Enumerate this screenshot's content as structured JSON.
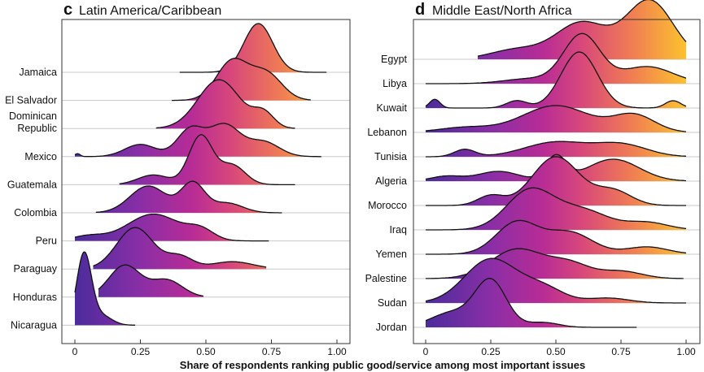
{
  "chart_data": [
    {
      "type": "ridgeline",
      "panel_letter": "c",
      "title": "Latin America/Caribbean",
      "xlim": [
        0,
        1
      ],
      "xticks": [
        0,
        0.25,
        0.5,
        0.75,
        1
      ],
      "xtick_labels": [
        "0",
        "0.25",
        "0.50",
        "0.75",
        "1.00"
      ],
      "grid": true,
      "colormap": "plasma (purple to orange along x)",
      "series": [
        {
          "name": "Jamaica",
          "range": [
            0.4,
            0.96
          ],
          "peaks": [
            [
              0.7,
              0.055,
              1.0
            ]
          ]
        },
        {
          "name": "El Salvador",
          "range": [
            0.37,
            0.9
          ],
          "peaks": [
            [
              0.6,
              0.06,
              0.8
            ],
            [
              0.73,
              0.06,
              0.55
            ]
          ]
        },
        {
          "name": "Dominican\nRepublic",
          "range": [
            0.31,
            0.84
          ],
          "peaks": [
            [
              0.55,
              0.08,
              1.0
            ],
            [
              0.72,
              0.04,
              0.3
            ]
          ]
        },
        {
          "name": "Mexico",
          "range": [
            0.0,
            0.94
          ],
          "peaks": [
            [
              0.44,
              0.05,
              0.55
            ],
            [
              0.57,
              0.06,
              0.65
            ],
            [
              0.25,
              0.06,
              0.25
            ],
            [
              0.72,
              0.06,
              0.3
            ],
            [
              0.01,
              0.01,
              0.06
            ]
          ]
        },
        {
          "name": "Guatemala",
          "range": [
            0.17,
            0.84
          ],
          "peaks": [
            [
              0.48,
              0.045,
              1.0
            ],
            [
              0.6,
              0.05,
              0.4
            ],
            [
              0.3,
              0.06,
              0.2
            ]
          ]
        },
        {
          "name": "Colombia",
          "range": [
            0.08,
            0.79
          ],
          "peaks": [
            [
              0.28,
              0.07,
              0.55
            ],
            [
              0.45,
              0.045,
              0.6
            ],
            [
              0.58,
              0.06,
              0.2
            ]
          ]
        },
        {
          "name": "Peru",
          "range": [
            0.0,
            0.74
          ],
          "peaks": [
            [
              0.3,
              0.1,
              0.55
            ],
            [
              0.48,
              0.05,
              0.2
            ],
            [
              0.05,
              0.06,
              0.1
            ]
          ]
        },
        {
          "name": "Paraguay",
          "range": [
            0.07,
            0.73
          ],
          "peaks": [
            [
              0.23,
              0.07,
              0.85
            ],
            [
              0.4,
              0.05,
              0.25
            ],
            [
              0.6,
              0.08,
              0.15
            ]
          ]
        },
        {
          "name": "Honduras",
          "range": [
            0.09,
            0.49
          ],
          "peaks": [
            [
              0.19,
              0.06,
              0.65
            ],
            [
              0.35,
              0.06,
              0.35
            ]
          ]
        },
        {
          "name": "Nicaragua",
          "range": [
            0.0,
            0.23
          ],
          "peaks": [
            [
              0.035,
              0.028,
              1.45
            ],
            [
              0.1,
              0.04,
              0.2
            ]
          ]
        }
      ]
    },
    {
      "type": "ridgeline",
      "panel_letter": "d",
      "title": "Middle East/North Africa",
      "xlim": [
        0,
        1
      ],
      "xticks": [
        0,
        0.25,
        0.5,
        0.75,
        1
      ],
      "xtick_labels": [
        "0",
        "0.25",
        "0.50",
        "0.75",
        "1.00"
      ],
      "grid": true,
      "colormap": "plasma (purple to orange along x)",
      "series": [
        {
          "name": "Egypt",
          "range": [
            0.2,
            1.0
          ],
          "peaks": [
            [
              0.86,
              0.09,
              1.2
            ],
            [
              0.6,
              0.1,
              0.75
            ],
            [
              0.35,
              0.1,
              0.2
            ]
          ]
        },
        {
          "name": "Libya",
          "range": [
            0.0,
            1.0
          ],
          "peaks": [
            [
              0.6,
              0.07,
              1.0
            ],
            [
              0.85,
              0.1,
              0.35
            ],
            [
              0.4,
              0.1,
              0.1
            ]
          ]
        },
        {
          "name": "Kuwait",
          "range": [
            0.0,
            1.0
          ],
          "peaks": [
            [
              0.59,
              0.07,
              1.15
            ],
            [
              0.035,
              0.02,
              0.18
            ],
            [
              0.95,
              0.03,
              0.15
            ],
            [
              0.35,
              0.04,
              0.15
            ]
          ]
        },
        {
          "name": "Lebanon",
          "range": [
            0.0,
            1.0
          ],
          "peaks": [
            [
              0.5,
              0.13,
              0.55
            ],
            [
              0.8,
              0.08,
              0.35
            ],
            [
              0.15,
              0.1,
              0.1
            ]
          ]
        },
        {
          "name": "Tunisia",
          "range": [
            0.0,
            1.0
          ],
          "peaks": [
            [
              0.5,
              0.12,
              0.3
            ],
            [
              0.75,
              0.1,
              0.25
            ],
            [
              0.15,
              0.04,
              0.15
            ]
          ]
        },
        {
          "name": "Algeria",
          "range": [
            0.0,
            1.0
          ],
          "peaks": [
            [
              0.5,
              0.04,
              0.5
            ],
            [
              0.72,
              0.1,
              0.45
            ],
            [
              0.28,
              0.08,
              0.2
            ],
            [
              0.08,
              0.06,
              0.1
            ]
          ]
        },
        {
          "name": "Morocco",
          "range": [
            0.0,
            1.0
          ],
          "peaks": [
            [
              0.5,
              0.09,
              1.0
            ],
            [
              0.72,
              0.07,
              0.3
            ],
            [
              0.25,
              0.05,
              0.2
            ]
          ]
        },
        {
          "name": "Iraq",
          "range": [
            0.0,
            1.0
          ],
          "peaks": [
            [
              0.4,
              0.09,
              0.8
            ],
            [
              0.6,
              0.1,
              0.4
            ],
            [
              0.85,
              0.08,
              0.15
            ]
          ]
        },
        {
          "name": "Yemen",
          "range": [
            0.0,
            1.0
          ],
          "peaks": [
            [
              0.35,
              0.08,
              0.65
            ],
            [
              0.55,
              0.09,
              0.45
            ],
            [
              0.85,
              0.08,
              0.15
            ]
          ]
        },
        {
          "name": "Palestine",
          "range": [
            0.0,
            0.99
          ],
          "peaks": [
            [
              0.35,
              0.1,
              0.6
            ],
            [
              0.55,
              0.08,
              0.3
            ],
            [
              0.75,
              0.08,
              0.15
            ]
          ]
        },
        {
          "name": "Sudan",
          "range": [
            0.0,
            1.0
          ],
          "peaks": [
            [
              0.25,
              0.1,
              0.9
            ],
            [
              0.45,
              0.08,
              0.3
            ],
            [
              0.7,
              0.08,
              0.1
            ]
          ]
        },
        {
          "name": "Jordan",
          "range": [
            0.0,
            0.81
          ],
          "peaks": [
            [
              0.25,
              0.06,
              0.95
            ],
            [
              0.1,
              0.08,
              0.3
            ],
            [
              0.45,
              0.06,
              0.1
            ]
          ]
        }
      ]
    }
  ],
  "shared_xlabel": "Share of respondents ranking public good/service among most important issues"
}
